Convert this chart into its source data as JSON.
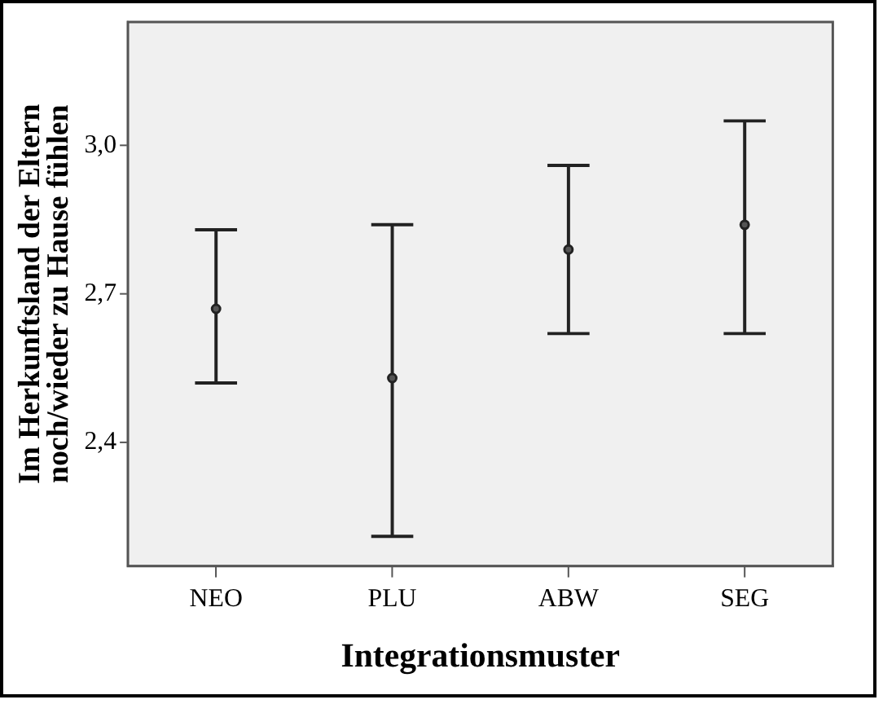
{
  "chart_data": {
    "type": "scatter",
    "xlabel": "Integrationsmuster",
    "ylabel": "Im Herkunftsland der Eltern noch/wieder zu Hause fühlen",
    "categories": [
      "NEO",
      "PLU",
      "ABW",
      "SEG"
    ],
    "series": [
      {
        "color": "#222222",
        "values": [
          2.67,
          2.53,
          2.79,
          2.84
        ],
        "errors": [
          [
            2.52,
            2.83
          ],
          [
            2.21,
            2.84
          ],
          [
            2.62,
            2.96
          ],
          [
            2.62,
            3.05
          ]
        ]
      }
    ],
    "ylim": [
      2.15,
      3.25
    ],
    "yticks": [
      {
        "value": 2.4,
        "label": "2,4"
      },
      {
        "value": 2.7,
        "label": "2,7"
      },
      {
        "value": 3.0,
        "label": "3,0"
      }
    ],
    "grid": false,
    "legend": false,
    "marker": "circle"
  }
}
